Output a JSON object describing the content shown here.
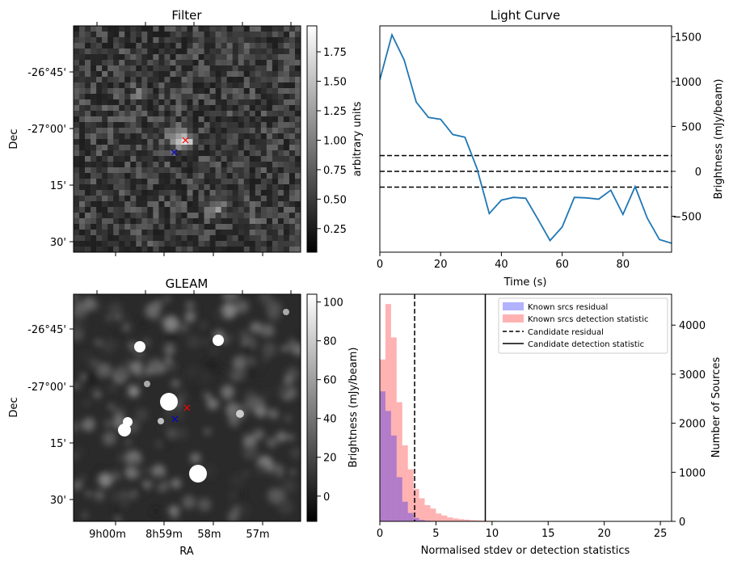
{
  "chart_data": [
    {
      "type": "heatmap",
      "title": "Filter",
      "xlabel": "",
      "ylabel": "Dec",
      "ytick_labels": [
        "-26°45'",
        "-27°00'",
        "15'",
        "30'"
      ],
      "colorbar": {
        "label": "arbitrary units",
        "range": [
          0.05,
          1.97
        ],
        "ticks": [
          0.25,
          0.5,
          0.75,
          1.0,
          1.25,
          1.5,
          1.75
        ],
        "tick_labels": [
          "0.25",
          "0.50",
          "0.75",
          "1.00",
          "1.25",
          "1.50",
          "1.75"
        ]
      },
      "markers": [
        {
          "name": "candidate",
          "symbol": "x",
          "color": "#ff0000"
        },
        {
          "name": "reference",
          "symbol": "x",
          "color": "#0000cc"
        }
      ]
    },
    {
      "type": "line",
      "title": "Light Curve",
      "xlabel": "Time (s)",
      "ylabel": "Brightness (mJy/beam)",
      "xlim": [
        0,
        96
      ],
      "ylim": [
        -900,
        1620
      ],
      "xticks": [
        0,
        20,
        40,
        60,
        80
      ],
      "yticks": [
        -500,
        0,
        500,
        1000,
        1500
      ],
      "x": [
        0,
        4,
        8,
        12,
        16,
        20,
        24,
        28,
        32,
        36,
        40,
        44,
        48,
        52,
        56,
        60,
        64,
        68,
        72,
        76,
        80,
        84,
        88,
        92,
        96
      ],
      "y": [
        1020,
        1520,
        1240,
        770,
        600,
        580,
        410,
        380,
        30,
        -470,
        -320,
        -290,
        -300,
        -530,
        -770,
        -620,
        -290,
        -295,
        -310,
        -210,
        -480,
        -170,
        -520,
        -760,
        -800
      ],
      "hlines": [
        175,
        0,
        -175
      ],
      "series_color": "#1f77b4"
    },
    {
      "type": "heatmap",
      "title": "GLEAM",
      "xlabel": "RA",
      "ylabel": "Dec",
      "xtick_labels": [
        "9h00m",
        "8h59m",
        "58m",
        "57m"
      ],
      "ytick_labels": [
        "-26°45'",
        "-27°00'",
        "15'",
        "30'"
      ],
      "colorbar": {
        "label": "Brightness (mJy/beam)",
        "range": [
          -13,
          104
        ],
        "ticks": [
          0,
          20,
          40,
          60,
          80,
          100
        ],
        "tick_labels": [
          "0",
          "20",
          "40",
          "60",
          "80",
          "100"
        ]
      }
    },
    {
      "type": "bar",
      "title": "",
      "xlabel": "Normalised stdev or detection statistics",
      "ylabel": "Number of Sources",
      "xlim": [
        0,
        26
      ],
      "ylim": [
        0,
        4630
      ],
      "xticks": [
        0,
        5,
        10,
        15,
        20,
        25
      ],
      "yticks": [
        0,
        1000,
        2000,
        3000,
        4000
      ],
      "bin_width": 0.5,
      "series": [
        {
          "name": "Known srcs residual",
          "color": "#0000ff",
          "opacity": 0.3,
          "bin_starts": [
            0,
            0.5,
            1.0,
            1.5,
            2.0,
            2.5,
            3.0,
            3.5,
            4.0,
            4.5,
            5.0
          ],
          "values": [
            2650,
            2250,
            1750,
            900,
            400,
            170,
            70,
            30,
            15,
            8,
            4
          ]
        },
        {
          "name": "Known srcs detection statistic",
          "color": "#ff0000",
          "opacity": 0.3,
          "bin_starts": [
            0,
            0.5,
            1.0,
            1.5,
            2.0,
            2.5,
            3.0,
            3.5,
            4.0,
            4.5,
            5.0,
            5.5,
            6.0,
            6.5,
            7.0,
            7.5,
            8.0,
            8.5,
            9.0,
            9.5,
            10.0,
            10.5,
            11.0,
            11.5,
            12.0,
            12.5,
            13.0,
            13.5,
            14.0,
            14.5,
            15.0
          ],
          "values": [
            3300,
            4430,
            3750,
            2430,
            1550,
            1060,
            660,
            470,
            330,
            260,
            160,
            120,
            80,
            60,
            45,
            35,
            25,
            20,
            15,
            12,
            10,
            8,
            6,
            5,
            4,
            4,
            3,
            3,
            2,
            2,
            2
          ]
        }
      ],
      "vlines": [
        {
          "name": "Candidate residual",
          "x": 3.1,
          "style": "dashed",
          "color": "#000000"
        },
        {
          "name": "Candidate detection statistic",
          "x": 9.4,
          "style": "solid",
          "color": "#000000"
        }
      ],
      "legend": {
        "placement": "top-right",
        "entries": [
          "Known srcs residual",
          "Known srcs detection statistic",
          "Candidate residual",
          "Candidate detection statistic"
        ]
      }
    }
  ]
}
